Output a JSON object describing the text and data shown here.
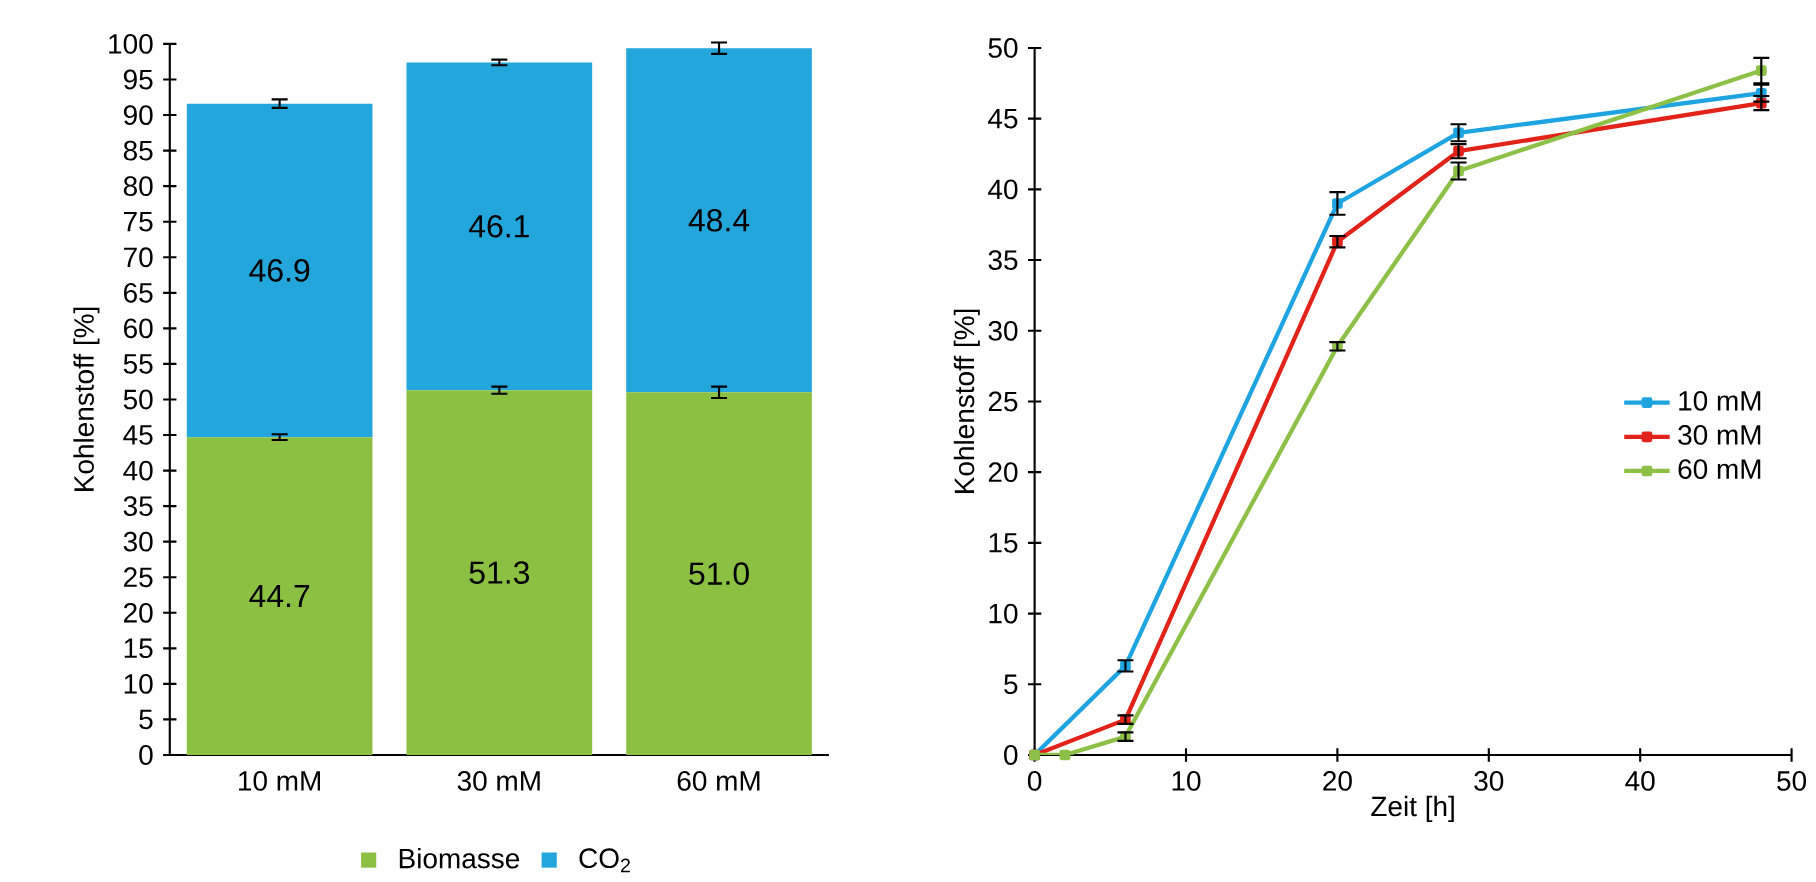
{
  "chart_data": [
    {
      "type": "bar",
      "stacked": true,
      "categories": [
        "10 mM",
        "30 mM",
        "60 mM"
      ],
      "ylabel": "Kohlenstoff [%]",
      "ylim": [
        0,
        100
      ],
      "yticks": [
        0,
        5,
        10,
        15,
        20,
        25,
        30,
        35,
        40,
        45,
        50,
        55,
        60,
        65,
        70,
        75,
        80,
        85,
        90,
        95,
        100
      ],
      "legend": "bottom",
      "grid": false,
      "series": [
        {
          "name": "Biomasse",
          "color": "#8bc043",
          "values": [
            44.7,
            51.3,
            51.0
          ],
          "value_labels": [
            "44.7",
            "51.3",
            "51.0"
          ],
          "errors": [
            0.4,
            0.5,
            0.8
          ]
        },
        {
          "name": "CO$_{2}$",
          "color": "#22a6dc",
          "values": [
            46.9,
            46.1,
            48.4
          ],
          "value_labels": [
            "46.9",
            "46.1",
            "48.4"
          ],
          "errors": [
            0.6,
            0.4,
            0.8
          ]
        }
      ]
    },
    {
      "type": "line",
      "xlabel": "Zeit [h]",
      "ylabel": "Kohlenstoff [%]",
      "xlim": [
        0,
        50
      ],
      "xticks": [
        0,
        10,
        20,
        30,
        40,
        50
      ],
      "ylim": [
        0,
        50
      ],
      "yticks": [
        0,
        5,
        10,
        15,
        20,
        25,
        30,
        35,
        40,
        45,
        50
      ],
      "legend": "right",
      "marker": "square",
      "line_style": "solid",
      "grid": false,
      "series": [
        {
          "name": "10 mM",
          "color": "#1ea4e0",
          "x": [
            0,
            2,
            6,
            20,
            28,
            48
          ],
          "values": [
            0,
            null,
            6.3,
            39.0,
            44.0,
            46.8
          ],
          "errors": [
            null,
            null,
            0.4,
            0.8,
            0.6,
            0.6
          ]
        },
        {
          "name": "30 mM",
          "color": "#e2231a",
          "x": [
            0,
            2,
            6,
            20,
            28,
            48
          ],
          "values": [
            0,
            null,
            2.5,
            36.3,
            42.7,
            46.1
          ],
          "errors": [
            null,
            null,
            0.3,
            0.4,
            0.5,
            0.5
          ]
        },
        {
          "name": "60 mM",
          "color": "#8cc046",
          "x": [
            0,
            2,
            6,
            20,
            28,
            48
          ],
          "values": [
            0,
            0,
            1.3,
            28.9,
            41.3,
            48.4
          ],
          "errors": [
            null,
            null,
            0.3,
            0.3,
            0.6,
            0.9
          ]
        }
      ]
    }
  ]
}
